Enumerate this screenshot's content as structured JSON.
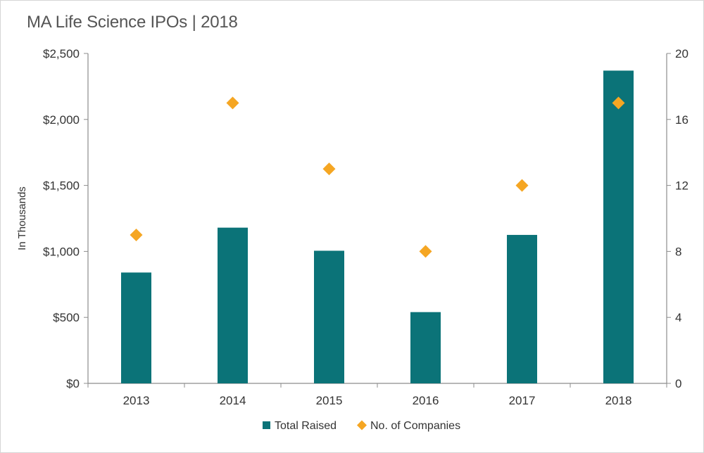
{
  "chart_data": {
    "type": "bar",
    "title": "MA Life Science IPOs | 2018",
    "ylabel": "In Thousands",
    "categories": [
      "2013",
      "2014",
      "2015",
      "2016",
      "2017",
      "2018"
    ],
    "series": [
      {
        "name": "Total Raised",
        "type": "bar",
        "axis": "left",
        "color": "#0b7378",
        "values": [
          840,
          1180,
          1005,
          540,
          1125,
          2370
        ]
      },
      {
        "name": "No. of Companies",
        "type": "scatter",
        "marker": "diamond",
        "axis": "right",
        "color": "#f5a623",
        "values": [
          9,
          17,
          13,
          8,
          12,
          17
        ]
      }
    ],
    "y_left": {
      "min": 0,
      "max": 2500,
      "ticks": [
        "$0",
        "$500",
        "$1,000",
        "$1,500",
        "$2,000",
        "$2,500"
      ]
    },
    "y_right": {
      "min": 0,
      "max": 20,
      "ticks": [
        "0",
        "4",
        "8",
        "12",
        "16",
        "20"
      ]
    },
    "grid": false,
    "legend": "bottom-center"
  }
}
